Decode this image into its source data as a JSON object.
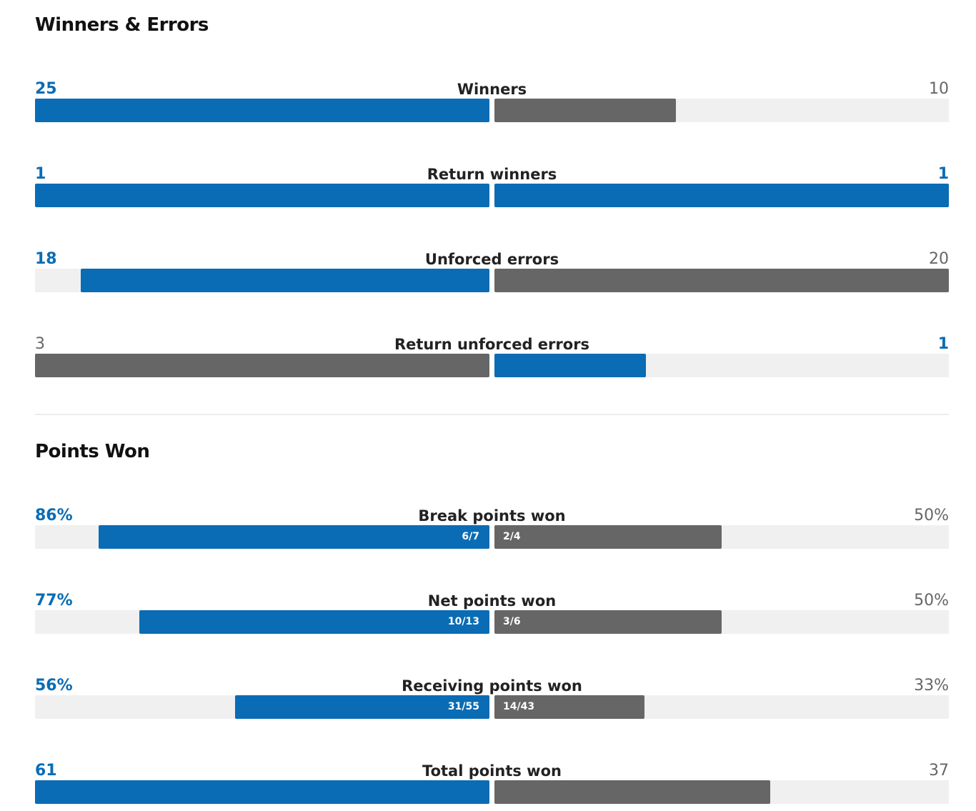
{
  "sections": [
    {
      "title": "Winners & Errors",
      "rows": [
        {
          "name": "Winners",
          "scale": "relative",
          "left": {
            "value": 25,
            "color": "#0a6cb4"
          },
          "right": {
            "value": 10,
            "color": "#666666"
          }
        },
        {
          "name": "Return winners",
          "scale": "relative",
          "left": {
            "value": 1,
            "color": "#0a6cb4"
          },
          "right": {
            "value": 1,
            "color": "#0a6cb4"
          }
        },
        {
          "name": "Unforced errors",
          "scale": "relative",
          "left": {
            "value": 18,
            "color": "#0a6cb4"
          },
          "right": {
            "value": 20,
            "color": "#666666"
          }
        },
        {
          "name": "Return unforced errors",
          "scale": "relative",
          "left": {
            "value": 3,
            "color": "#666666"
          },
          "right": {
            "value": 1,
            "color": "#0a6cb4"
          }
        }
      ]
    },
    {
      "title": "Points Won",
      "rows": [
        {
          "name": "Break points won",
          "scale": "percent",
          "left": {
            "value": 86,
            "label": "86%",
            "detail": "6/7",
            "color": "#0a6cb4"
          },
          "right": {
            "value": 50,
            "label": "50%",
            "detail": "2/4",
            "color": "#666666"
          }
        },
        {
          "name": "Net points won",
          "scale": "percent",
          "left": {
            "value": 77,
            "label": "77%",
            "detail": "10/13",
            "color": "#0a6cb4"
          },
          "right": {
            "value": 50,
            "label": "50%",
            "detail": "3/6",
            "color": "#666666"
          }
        },
        {
          "name": "Receiving points won",
          "scale": "percent",
          "left": {
            "value": 56,
            "label": "56%",
            "detail": "31/55",
            "color": "#0a6cb4"
          },
          "right": {
            "value": 33,
            "label": "33%",
            "detail": "14/43",
            "color": "#666666"
          }
        },
        {
          "name": "Total points won",
          "scale": "relative",
          "left": {
            "value": 61,
            "color": "#0a6cb4"
          },
          "right": {
            "value": 37,
            "color": "#666666"
          }
        }
      ]
    }
  ]
}
